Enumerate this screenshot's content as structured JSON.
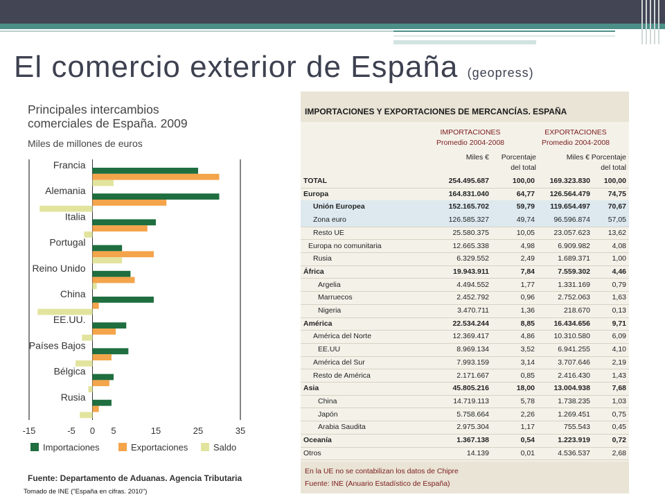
{
  "slide": {
    "title": "El comercio exterior de España",
    "title_suffix": "(geopress)",
    "accent_colors": {
      "dark_bar": "#434454",
      "teal": "#4c8e88"
    }
  },
  "chart_data": [
    {
      "type": "bar",
      "orientation": "horizontal",
      "title": "Principales intercambios comerciales de España. 2009",
      "subtitle": "Miles de millones de euros",
      "categories": [
        "Francia",
        "Alemania",
        "Italia",
        "Portugal",
        "Reino Unido",
        "China",
        "EE.UU.",
        "Países Bajos",
        "Bélgica",
        "Rusia"
      ],
      "series": [
        {
          "name": "Importaciones",
          "color": "#1f6e3f",
          "values": [
            25,
            30,
            15,
            7,
            9,
            14.5,
            8,
            8.5,
            5,
            4.5
          ]
        },
        {
          "name": "Exportaciones",
          "color": "#f4a44a",
          "values": [
            30,
            17.5,
            13,
            14.5,
            10,
            1.5,
            5.5,
            4.5,
            4,
            1.5
          ]
        },
        {
          "name": "Saldo",
          "color": "#e2e49e",
          "values": [
            5,
            -12.5,
            -2,
            7,
            1,
            -13,
            -2.5,
            -4,
            -1,
            -3
          ]
        }
      ],
      "xlim": [
        -15,
        35
      ],
      "xticks": [
        "-15",
        "-5",
        "0",
        "5",
        "15",
        "25",
        "35"
      ],
      "xtick_values": [
        -15,
        -5,
        0,
        5,
        15,
        25,
        35
      ],
      "grid_values": [
        -15,
        35
      ],
      "legend": "bottom",
      "source": "Fuente: Departamento de Aduanas. Agencia Tributaria",
      "credit": "Tomado de INE (\"España en cifras. 2010\")"
    },
    {
      "type": "table",
      "title": "IMPORTACIONES Y EXPORTACIONES DE MERCANCÍAS. ESPAÑA",
      "groups": [
        {
          "line1": "IMPORTACIONES",
          "line2": "Promedio 2004-2008"
        },
        {
          "line1": "EXPORTACIONES",
          "line2": "Promedio 2004-2008"
        }
      ],
      "subheads": [
        {
          "a": "Miles €",
          "b": ""
        },
        {
          "a": "Porcentaje",
          "b": "del total"
        },
        {
          "a": "Miles €",
          "b": ""
        },
        {
          "a": "Porcentaje",
          "b": "del total"
        }
      ],
      "rows": [
        {
          "label": "TOTAL",
          "indent": 0,
          "bold": true,
          "eu": false,
          "v": [
            "254.495.687",
            "100,00",
            "169.323.830",
            "100,00"
          ]
        },
        {
          "label": "Europa",
          "indent": 0,
          "bold": true,
          "eu": false,
          "v": [
            "164.831.040",
            "64,77",
            "126.564.479",
            "74,75"
          ]
        },
        {
          "label": "Unión Europea",
          "indent": 1,
          "bold": true,
          "eu": true,
          "v": [
            "152.165.702",
            "59,79",
            "119.654.497",
            "70,67"
          ]
        },
        {
          "label": "Zona euro",
          "indent": 1,
          "bold": false,
          "eu": true,
          "v": [
            "126.585.327",
            "49,74",
            "96.596.874",
            "57,05"
          ]
        },
        {
          "label": "Resto UE",
          "indent": 1,
          "bold": false,
          "eu": false,
          "v": [
            "25.580.375",
            "10,05",
            "23.057.623",
            "13,62"
          ]
        },
        {
          "label": "Europa no comunitaria",
          "indent": 0.5,
          "bold": false,
          "eu": false,
          "v": [
            "12.665.338",
            "4,98",
            "6.909.982",
            "4,08"
          ]
        },
        {
          "label": "Rusia",
          "indent": 1,
          "bold": false,
          "eu": false,
          "v": [
            "6.329.552",
            "2,49",
            "1.689.371",
            "1,00"
          ]
        },
        {
          "label": "África",
          "indent": 0,
          "bold": true,
          "eu": false,
          "v": [
            "19.943.911",
            "7,84",
            "7.559.302",
            "4,46"
          ]
        },
        {
          "label": "Argelia",
          "indent": 1.5,
          "bold": false,
          "eu": false,
          "v": [
            "4.494.552",
            "1,77",
            "1.331.169",
            "0,79"
          ]
        },
        {
          "label": "Marruecos",
          "indent": 1.5,
          "bold": false,
          "eu": false,
          "v": [
            "2.452.792",
            "0,96",
            "2.752.063",
            "1,63"
          ]
        },
        {
          "label": "Nigeria",
          "indent": 1.5,
          "bold": false,
          "eu": false,
          "v": [
            "3.470.711",
            "1,36",
            "218.670",
            "0,13"
          ]
        },
        {
          "label": "América",
          "indent": 0,
          "bold": true,
          "eu": false,
          "v": [
            "22.534.244",
            "8,85",
            "16.434.656",
            "9,71"
          ]
        },
        {
          "label": "América del Norte",
          "indent": 1,
          "bold": false,
          "eu": false,
          "v": [
            "12.369.417",
            "4,86",
            "10.310.580",
            "6,09"
          ]
        },
        {
          "label": "EE.UU",
          "indent": 1.5,
          "bold": false,
          "eu": false,
          "v": [
            "8.969.134",
            "3,52",
            "6.941.255",
            "4,10"
          ]
        },
        {
          "label": "América del Sur",
          "indent": 1,
          "bold": false,
          "eu": false,
          "v": [
            "7.993.159",
            "3,14",
            "3.707.646",
            "2,19"
          ]
        },
        {
          "label": "Resto de América",
          "indent": 1,
          "bold": false,
          "eu": false,
          "v": [
            "2.171.667",
            "0,85",
            "2.416.430",
            "1,43"
          ]
        },
        {
          "label": "Asia",
          "indent": 0,
          "bold": true,
          "eu": false,
          "v": [
            "45.805.216",
            "18,00",
            "13.004.938",
            "7,68"
          ]
        },
        {
          "label": "China",
          "indent": 1.5,
          "bold": false,
          "eu": false,
          "v": [
            "14.719.113",
            "5,78",
            "1.738.235",
            "1,03"
          ]
        },
        {
          "label": "Japón",
          "indent": 1.5,
          "bold": false,
          "eu": false,
          "v": [
            "5.758.664",
            "2,26",
            "1.269.451",
            "0,75"
          ]
        },
        {
          "label": "Arabia Saudita",
          "indent": 1.5,
          "bold": false,
          "eu": false,
          "v": [
            "2.975.304",
            "1,17",
            "755.543",
            "0,45"
          ]
        },
        {
          "label": "Oceanía",
          "indent": 0,
          "bold": true,
          "eu": false,
          "v": [
            "1.367.138",
            "0,54",
            "1.223.919",
            "0,72"
          ]
        },
        {
          "label": "Otros",
          "indent": 0,
          "bold": false,
          "eu": false,
          "v": [
            "14.139",
            "0,01",
            "4.536.537",
            "2,68"
          ]
        }
      ],
      "notes": [
        "En la UE no se contabilizan los datos de Chipre",
        "Fuente: INE (Anuario Estadístico de España)"
      ]
    }
  ]
}
